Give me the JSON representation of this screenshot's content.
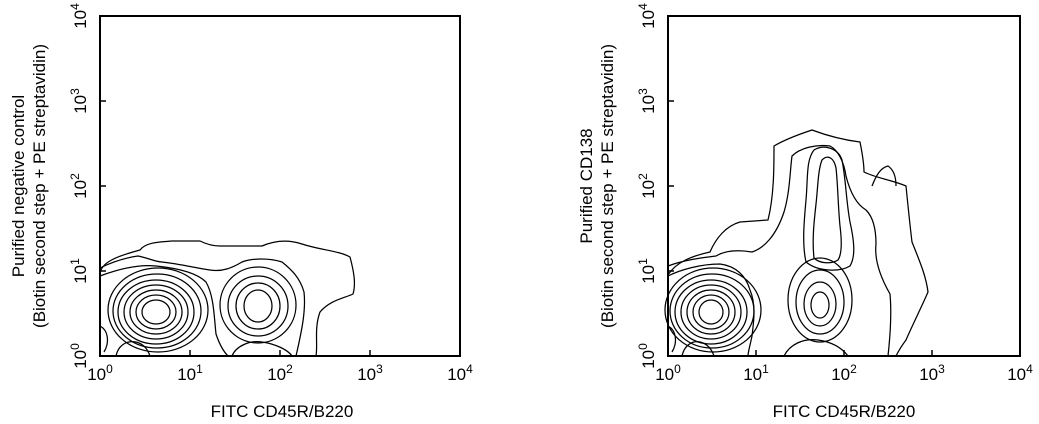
{
  "chart_data": [
    {
      "type": "contour",
      "xlabel": "FITC CD45R/B220",
      "ylabel_line1": "Purified negative control",
      "ylabel_line2": "(Biotin second step + PE streptavidin)",
      "x_scale": "log",
      "y_scale": "log",
      "xlim": [
        1,
        10000
      ],
      "ylim": [
        1,
        10000
      ],
      "x_ticks": [
        {
          "base": "10",
          "exp": "0",
          "value": 1
        },
        {
          "base": "10",
          "exp": "1",
          "value": 10
        },
        {
          "base": "10",
          "exp": "2",
          "value": 100
        },
        {
          "base": "10",
          "exp": "3",
          "value": 1000
        },
        {
          "base": "10",
          "exp": "4",
          "value": 10000
        }
      ],
      "y_ticks": [
        {
          "base": "10",
          "exp": "0",
          "value": 1
        },
        {
          "base": "10",
          "exp": "1",
          "value": 10
        },
        {
          "base": "10",
          "exp": "2",
          "value": 100
        },
        {
          "base": "10",
          "exp": "3",
          "value": 1000
        },
        {
          "base": "10",
          "exp": "4",
          "value": 10000
        }
      ],
      "populations": [
        {
          "center": [
            4,
            3
          ],
          "levels": 11
        },
        {
          "center": [
            60,
            3.5
          ],
          "levels": 6
        }
      ]
    },
    {
      "type": "contour",
      "xlabel": "FITC CD45R/B220",
      "ylabel_line1": "Purified CD138",
      "ylabel_line2": "(Biotin second step + PE streptavidin)",
      "x_scale": "log",
      "y_scale": "log",
      "xlim": [
        1,
        10000
      ],
      "ylim": [
        1,
        10000
      ],
      "x_ticks": [
        {
          "base": "10",
          "exp": "0",
          "value": 1
        },
        {
          "base": "10",
          "exp": "1",
          "value": 10
        },
        {
          "base": "10",
          "exp": "2",
          "value": 100
        },
        {
          "base": "10",
          "exp": "3",
          "value": 1000
        },
        {
          "base": "10",
          "exp": "4",
          "value": 10000
        }
      ],
      "y_ticks": [
        {
          "base": "10",
          "exp": "0",
          "value": 1
        },
        {
          "base": "10",
          "exp": "1",
          "value": 10
        },
        {
          "base": "10",
          "exp": "2",
          "value": 100
        },
        {
          "base": "10",
          "exp": "3",
          "value": 1000
        },
        {
          "base": "10",
          "exp": "4",
          "value": 10000
        }
      ],
      "populations": [
        {
          "center": [
            4,
            3
          ],
          "levels": 11
        },
        {
          "center": [
            50,
            4
          ],
          "levels": 5
        },
        {
          "center": [
            50,
            250
          ],
          "levels": 3
        }
      ]
    }
  ]
}
